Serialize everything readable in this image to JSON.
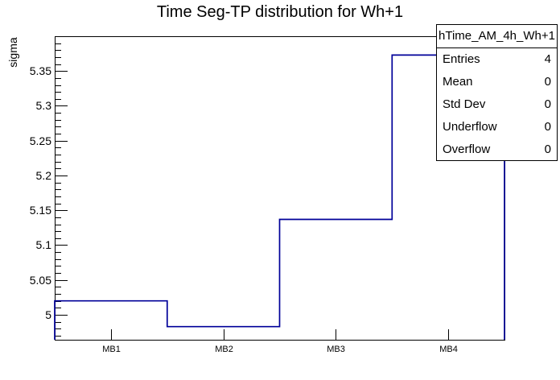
{
  "title": "Time Seg-TP distribution for Wh+1",
  "y_axis": {
    "label": "sigma"
  },
  "stats": {
    "header": "hTime_AM_4h_Wh+1",
    "rows": [
      {
        "label": "Entries",
        "value": "4"
      },
      {
        "label": "Mean",
        "value": "0"
      },
      {
        "label": "Std Dev",
        "value": "0"
      },
      {
        "label": "Underflow",
        "value": "0"
      },
      {
        "label": "Overflow",
        "value": "0"
      }
    ]
  },
  "chart_data": {
    "type": "line",
    "subtype": "step-histogram",
    "title": "Time Seg-TP distribution for Wh+1",
    "xlabel": "",
    "ylabel": "sigma",
    "categories": [
      "MB1",
      "MB2",
      "MB3",
      "MB4"
    ],
    "values": [
      5.02,
      4.983,
      5.137,
      5.373
    ],
    "ylim": [
      4.963,
      5.4
    ],
    "yticks": [
      {
        "v": 5.0,
        "label": "5"
      },
      {
        "v": 5.05,
        "label": "5.05"
      },
      {
        "v": 5.1,
        "label": "5.1"
      },
      {
        "v": 5.15,
        "label": "5.15"
      },
      {
        "v": 5.2,
        "label": "5.2"
      },
      {
        "v": 5.25,
        "label": "5.25"
      },
      {
        "v": 5.3,
        "label": "5.3"
      },
      {
        "v": 5.35,
        "label": "5.35"
      }
    ],
    "ytick_minor_step": 0.01,
    "grid": false,
    "legend": false,
    "line_color": "#000099",
    "frame_color": "#000000",
    "background_color": "#ffffff"
  }
}
